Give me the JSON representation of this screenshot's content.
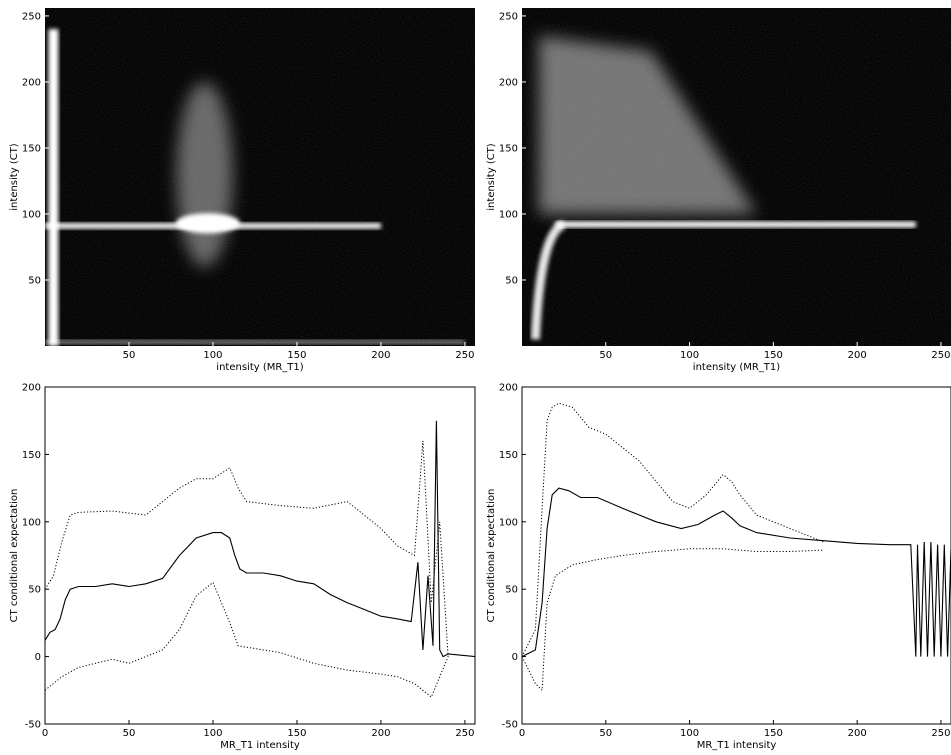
{
  "chart_data": [
    {
      "type": "heatmap",
      "panel": "top-left",
      "xlabel": "intensity (MR_T1)",
      "ylabel": "intensity (CT)",
      "xlim": [
        0,
        256
      ],
      "ylim": [
        0,
        256
      ],
      "xticks": [
        50,
        100,
        150,
        200,
        250
      ],
      "yticks": [
        50,
        100,
        150,
        200,
        250
      ],
      "colormap": "black-to-white",
      "features": [
        {
          "kind": "vertical-band",
          "x": 5,
          "y_range": [
            0,
            240
          ],
          "intensity": 1.0
        },
        {
          "kind": "horizontal-band",
          "y": 91,
          "x_range": [
            0,
            200
          ],
          "intensity": 0.95
        },
        {
          "kind": "blob",
          "x": 97,
          "y": 93,
          "intensity": 1.0
        },
        {
          "kind": "diffuse-column",
          "x": 95,
          "y_range": [
            60,
            200
          ],
          "intensity": 0.4
        },
        {
          "kind": "bottom-band",
          "y": 3,
          "x_range": [
            0,
            250
          ],
          "intensity": 0.5
        }
      ]
    },
    {
      "type": "heatmap",
      "panel": "top-right",
      "xlabel": "intensity (MR_T1)",
      "ylabel": "intensity (CT)",
      "xlim": [
        0,
        256
      ],
      "ylim": [
        0,
        256
      ],
      "xticks": [
        50,
        100,
        150,
        200,
        250
      ],
      "yticks": [
        50,
        100,
        150,
        200,
        250
      ],
      "colormap": "black-to-white",
      "features": [
        {
          "kind": "curved-band",
          "from": [
            8,
            5
          ],
          "to": [
            25,
            92
          ],
          "intensity": 0.9
        },
        {
          "kind": "horizontal-band",
          "y": 92,
          "x_range": [
            20,
            235
          ],
          "intensity": 1.0
        },
        {
          "kind": "diffuse-wedge",
          "x_range": [
            10,
            140
          ],
          "y_range": [
            100,
            235
          ],
          "intensity": 0.45
        }
      ]
    },
    {
      "type": "line",
      "panel": "bottom-left",
      "xlabel": "MR_T1 intensity",
      "ylabel": "CT conditional expectation",
      "xlim": [
        0,
        256
      ],
      "ylim": [
        -50,
        200
      ],
      "xticks": [
        0,
        50,
        100,
        150,
        200,
        250
      ],
      "yticks": [
        -50,
        0,
        50,
        100,
        150,
        200
      ],
      "series": [
        {
          "style": "solid",
          "x": [
            0,
            3,
            6,
            9,
            12,
            15,
            20,
            25,
            30,
            40,
            50,
            60,
            70,
            80,
            90,
            100,
            105,
            110,
            113,
            116,
            120,
            130,
            140,
            150,
            160,
            170,
            180,
            190,
            200,
            210,
            218,
            222,
            225,
            228,
            231,
            233,
            235,
            237,
            240,
            256
          ],
          "y": [
            12,
            18,
            20,
            28,
            42,
            50,
            52,
            52,
            52,
            54,
            52,
            54,
            58,
            75,
            88,
            92,
            92,
            88,
            75,
            65,
            62,
            62,
            60,
            56,
            54,
            46,
            40,
            35,
            30,
            28,
            26,
            70,
            5,
            60,
            8,
            175,
            5,
            0,
            2,
            0
          ]
        },
        {
          "style": "dotted",
          "x": [
            0,
            5,
            10,
            15,
            20,
            40,
            60,
            70,
            80,
            90,
            100,
            110,
            115,
            120,
            140,
            160,
            180,
            200,
            210,
            220,
            225,
            230,
            235,
            240
          ],
          "y": [
            50,
            60,
            85,
            105,
            107,
            108,
            105,
            115,
            125,
            132,
            132,
            140,
            125,
            115,
            112,
            110,
            115,
            95,
            82,
            75,
            160,
            40,
            100,
            0
          ]
        },
        {
          "style": "dotted",
          "x": [
            0,
            10,
            20,
            40,
            50,
            70,
            80,
            90,
            100,
            110,
            115,
            120,
            140,
            160,
            180,
            200,
            210,
            220,
            230,
            240
          ],
          "y": [
            -25,
            -15,
            -8,
            -2,
            -5,
            5,
            20,
            45,
            55,
            25,
            8,
            7,
            3,
            -5,
            -10,
            -13,
            -15,
            -20,
            -30,
            0
          ]
        }
      ]
    },
    {
      "type": "line",
      "panel": "bottom-right",
      "xlabel": "MR_T1 intensity",
      "ylabel": "CT conditional expectation",
      "xlim": [
        0,
        256
      ],
      "ylim": [
        -50,
        200
      ],
      "xticks": [
        0,
        50,
        100,
        150,
        200,
        250
      ],
      "yticks": [
        -50,
        0,
        50,
        100,
        150,
        200
      ],
      "series": [
        {
          "style": "solid",
          "x": [
            0,
            8,
            12,
            15,
            18,
            22,
            28,
            35,
            45,
            60,
            80,
            95,
            105,
            115,
            120,
            125,
            130,
            140,
            160,
            180,
            200,
            220,
            232,
            235,
            236,
            238,
            240,
            242,
            244,
            246,
            248,
            250,
            252,
            254,
            256
          ],
          "y": [
            0,
            5,
            40,
            95,
            120,
            125,
            123,
            118,
            118,
            110,
            100,
            95,
            98,
            105,
            108,
            103,
            97,
            92,
            88,
            86,
            84,
            83,
            83,
            0,
            83,
            0,
            85,
            0,
            85,
            0,
            83,
            0,
            83,
            0,
            80
          ]
        },
        {
          "style": "dotted",
          "x": [
            0,
            8,
            12,
            15,
            18,
            22,
            30,
            40,
            50,
            70,
            90,
            100,
            110,
            120,
            125,
            130,
            140,
            160,
            180
          ],
          "y": [
            0,
            20,
            110,
            175,
            185,
            188,
            185,
            170,
            165,
            145,
            115,
            110,
            120,
            135,
            130,
            120,
            105,
            95,
            85
          ]
        },
        {
          "style": "dotted",
          "x": [
            0,
            8,
            12,
            15,
            20,
            30,
            45,
            60,
            80,
            100,
            120,
            140,
            160,
            180
          ],
          "y": [
            0,
            -20,
            -25,
            40,
            60,
            68,
            72,
            75,
            78,
            80,
            80,
            78,
            78,
            79
          ]
        }
      ]
    }
  ]
}
